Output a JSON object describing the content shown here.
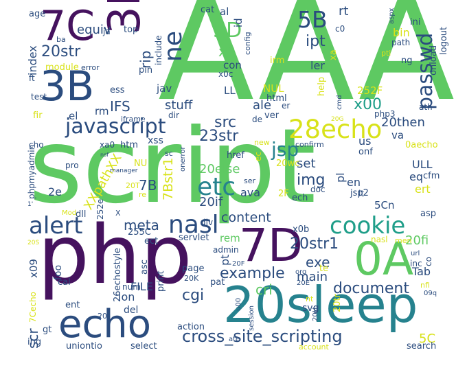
{
  "palette": {
    "dark_purple": "#45125e",
    "navy_teal": "#2b4c7e",
    "teal": "#26828e",
    "green_teal": "#1f9e89",
    "green": "#5ec962",
    "yellow": "#d8e219",
    "background": "#ffffff"
  },
  "words": [
    {
      "text": "AAA",
      "color": "#5ec962"
    },
    {
      "text": "script",
      "color": "#5ec962"
    },
    {
      "text": "php",
      "color": "#45125e"
    },
    {
      "text": "20sleep",
      "color": "#26828e"
    },
    {
      "text": "7C",
      "color": "#45125e"
    },
    {
      "text": "3B",
      "color": "#2b4c7e"
    },
    {
      "text": "3D",
      "color": "#45125e"
    },
    {
      "text": "echo",
      "color": "#2b4c7e"
    },
    {
      "text": "0A",
      "color": "#5ec962"
    },
    {
      "text": "7D",
      "color": "#45125e"
    },
    {
      "text": "javascript",
      "color": "#2b4c7e"
    },
    {
      "text": "28echo",
      "color": "#d8e219"
    },
    {
      "text": "cookie",
      "color": "#1f9e89"
    },
    {
      "text": "nasl",
      "color": "#2b4c7e"
    },
    {
      "text": "alert",
      "color": "#2b4c7e"
    },
    {
      "text": "etc",
      "color": "#26828e"
    },
    {
      "text": "passwd",
      "color": "#2b4c7e"
    },
    {
      "text": "ne",
      "color": "#2b4c7e"
    },
    {
      "text": "5B",
      "color": "#2b4c7e"
    },
    {
      "text": "5D",
      "color": "#5ec962"
    },
    {
      "text": "cross_site_scripting",
      "color": "#2b4c7e"
    },
    {
      "text": "jsp",
      "color": "#26828e"
    },
    {
      "text": "document",
      "color": "#2b4c7e"
    },
    {
      "text": "example",
      "color": "#2b4c7e"
    },
    {
      "text": "23str",
      "color": "#2b4c7e"
    },
    {
      "text": "src",
      "color": "#2b4c7e"
    },
    {
      "text": "ipt",
      "color": "#2b4c7e"
    },
    {
      "text": "x00",
      "color": "#1f9e89"
    },
    {
      "text": "20str1",
      "color": "#2b4c7e"
    },
    {
      "text": "20str",
      "color": "#2b4c7e"
    },
    {
      "text": "img",
      "color": "#2b4c7e"
    },
    {
      "text": "content",
      "color": "#2b4c7e"
    },
    {
      "text": "7Bstr1",
      "color": "#d8e219"
    },
    {
      "text": "20else",
      "color": "#5ec962"
    },
    {
      "text": "IFS",
      "color": "#2b4c7e"
    },
    {
      "text": "x0",
      "color": "#5ec962"
    },
    {
      "text": "rip",
      "color": "#2b4c7e"
    },
    {
      "text": "equiv",
      "color": "#2b4c7e"
    },
    {
      "text": "stuff",
      "color": "#2b4c7e"
    },
    {
      "text": "20then",
      "color": "#2b4c7e"
    },
    {
      "text": "cgi",
      "color": "#2b4c7e"
    },
    {
      "text": "exe",
      "color": "#2b4c7e"
    },
    {
      "text": "main",
      "color": "#2b4c7e"
    },
    {
      "text": "cri",
      "color": "#5ec962"
    },
    {
      "text": "meta",
      "color": "#2b4c7e"
    },
    {
      "text": "7B",
      "color": "#2b4c7e"
    },
    {
      "text": "20if",
      "color": "#2b4c7e"
    },
    {
      "text": "XXpathXX",
      "color": "#d8e219"
    },
    {
      "text": "set",
      "color": "#2b4c7e"
    },
    {
      "text": "scr",
      "color": "#2b4c7e"
    },
    {
      "text": "ale",
      "color": "#2b4c7e"
    },
    {
      "text": "5C",
      "color": "#d8e219"
    },
    {
      "text": "rt",
      "color": "#2b4c7e"
    },
    {
      "text": "ler",
      "color": "#2b4c7e"
    },
    {
      "text": "20fi",
      "color": "#5ec962"
    },
    {
      "text": "FILE",
      "color": "#2b4c7e"
    },
    {
      "text": "Tab",
      "color": "#2b4c7e"
    },
    {
      "text": "index",
      "color": "#2b4c7e"
    },
    {
      "text": "con",
      "color": "#2b4c7e"
    },
    {
      "text": "jav",
      "color": "#2b4c7e"
    },
    {
      "text": "ava",
      "color": "#2b4c7e"
    },
    {
      "text": "eq",
      "color": "#2b4c7e"
    },
    {
      "text": "ert",
      "color": "#d8e219"
    },
    {
      "text": "en",
      "color": "#2b4c7e"
    },
    {
      "text": "pl",
      "color": "#2b4c7e"
    },
    {
      "text": "2e",
      "color": "#2b4c7e"
    },
    {
      "text": "rem",
      "color": "#5ec962"
    },
    {
      "text": "pt",
      "color": "#2b4c7e"
    },
    {
      "text": "ion",
      "color": "#2b4c7e"
    },
    {
      "text": "del",
      "color": "#2b4c7e"
    },
    {
      "text": "x09",
      "color": "#2b4c7e"
    },
    {
      "text": "LL",
      "color": "#2b4c7e"
    },
    {
      "text": "NUL",
      "color": "#d8e219"
    },
    {
      "text": "html",
      "color": "#2b4c7e"
    },
    {
      "text": "ULL",
      "color": "#2b4c7e"
    },
    {
      "text": "bin",
      "color": "#d8e219"
    },
    {
      "text": "onload",
      "color": "#2b4c7e"
    },
    {
      "text": "logout",
      "color": "#2b4c7e"
    },
    {
      "text": "va",
      "color": "#2b4c7e"
    },
    {
      "text": "us",
      "color": "#2b4c7e"
    },
    {
      "text": "0aecho",
      "color": "#d8e219"
    },
    {
      "text": "jsp2",
      "color": "#2b4c7e"
    },
    {
      "text": "5Cn",
      "color": "#2b4c7e"
    },
    {
      "text": "svg",
      "color": "#2b4c7e"
    },
    {
      "text": "asc",
      "color": "#2b4c7e"
    },
    {
      "text": "print",
      "color": "#2b4c7e"
    },
    {
      "text": "xss",
      "color": "#2b4c7e"
    },
    {
      "text": "htm",
      "color": "#2b4c7e"
    },
    {
      "text": "xa0",
      "color": "#2b4c7e"
    },
    {
      "text": "rm",
      "color": "#2b4c7e"
    },
    {
      "text": "ess",
      "color": "#2b4c7e"
    },
    {
      "text": "pin",
      "color": "#2b4c7e"
    },
    {
      "text": "ft",
      "color": "#2b4c7e"
    },
    {
      "text": "test",
      "color": "#2b4c7e"
    },
    {
      "text": "fir",
      "color": "#d8e219"
    },
    {
      "text": "el",
      "color": "#2b4c7e"
    },
    {
      "text": "cho",
      "color": "#2b4c7e"
    },
    {
      "text": "module",
      "color": "#d8e219"
    },
    {
      "text": "error",
      "color": "#2b4c7e"
    },
    {
      "text": "age",
      "color": "#2b4c7e"
    },
    {
      "text": "ba",
      "color": "#2b4c7e"
    },
    {
      "text": "ja",
      "color": "#2b4c7e"
    },
    {
      "text": "top",
      "color": "#2b4c7e"
    },
    {
      "text": "include",
      "color": "#2b4c7e"
    },
    {
      "text": "cat",
      "color": "#2b4c7e"
    },
    {
      "text": "al",
      "color": "#2b4c7e"
    },
    {
      "text": "id",
      "color": "#2b4c7e"
    },
    {
      "text": "config",
      "color": "#2b4c7e"
    },
    {
      "text": "c0",
      "color": "#2b4c7e"
    },
    {
      "text": "xa",
      "color": "#d8e219"
    },
    {
      "text": "irm",
      "color": "#d8e219"
    },
    {
      "text": "x0c",
      "color": "#2b4c7e"
    },
    {
      "text": "help",
      "color": "#d8e219"
    },
    {
      "text": "er",
      "color": "#2b4c7e"
    },
    {
      "text": "ver",
      "color": "#2b4c7e"
    },
    {
      "text": "de",
      "color": "#2b4c7e"
    },
    {
      "text": "252F",
      "color": "#d8e219"
    },
    {
      "text": "ath",
      "color": "#2b4c7e"
    },
    {
      "text": "php3",
      "color": "#2b4c7e"
    },
    {
      "text": "cmd",
      "color": "#2b4c7e"
    },
    {
      "text": "20G",
      "color": "#d8e219"
    },
    {
      "text": "ini",
      "color": "#2b4c7e"
    },
    {
      "text": "aspx",
      "color": "#2b4c7e"
    },
    {
      "text": "path",
      "color": "#2b4c7e"
    },
    {
      "text": "ng",
      "color": "#2b4c7e"
    },
    {
      "text": "pti",
      "color": "#d8e219"
    },
    {
      "text": "iframe",
      "color": "#2b4c7e"
    },
    {
      "text": "dir",
      "color": "#2b4c7e"
    },
    {
      "text": "new",
      "color": "#d8e219"
    },
    {
      "text": "confirm",
      "color": "#2b4c7e"
    },
    {
      "text": "onf",
      "color": "#2b4c7e"
    },
    {
      "text": "cfm",
      "color": "#2b4c7e"
    },
    {
      "text": "20wc",
      "color": "#d8e219"
    },
    {
      "text": "href",
      "color": "#2b4c7e"
    },
    {
      "text": "sc",
      "color": "#2b4c7e"
    },
    {
      "text": "ec",
      "color": "#d8e219"
    },
    {
      "text": "ser",
      "color": "#2b4c7e"
    },
    {
      "text": "2F",
      "color": "#d8e219"
    },
    {
      "text": "ech",
      "color": "#2b4c7e"
    },
    {
      "text": "doc",
      "color": "#2b4c7e"
    },
    {
      "text": "lt",
      "color": "#2b4c7e"
    },
    {
      "text": "asp",
      "color": "#2b4c7e"
    },
    {
      "text": "onerror",
      "color": "#2b4c7e"
    },
    {
      "text": "re",
      "color": "#d8e219"
    },
    {
      "text": "NU",
      "color": "#d8e219"
    },
    {
      "text": "nsf",
      "color": "#2b4c7e"
    },
    {
      "text": "manager",
      "color": "#2b4c7e"
    },
    {
      "text": "20T",
      "color": "#d8e219"
    },
    {
      "text": "pro",
      "color": "#2b4c7e"
    },
    {
      "text": "phpmyadmin",
      "color": "#2b4c7e"
    },
    {
      "text": "1'",
      "color": "#2b4c7e"
    },
    {
      "text": "dll",
      "color": "#2b4c7e"
    },
    {
      "text": "Mod",
      "color": "#d8e219"
    },
    {
      "text": "252e",
      "color": "#2b4c7e"
    },
    {
      "text": "X",
      "color": "#2b4c7e"
    },
    {
      "text": "div",
      "color": "#2b4c7e"
    },
    {
      "text": "255C",
      "color": "#2b4c7e"
    },
    {
      "text": "ect",
      "color": "#2b4c7e"
    },
    {
      "text": "servlet",
      "color": "#2b4c7e"
    },
    {
      "text": "x0b",
      "color": "#2b4c7e"
    },
    {
      "text": "nasl",
      "color": "#d8e219"
    },
    {
      "text": "men",
      "color": "#d8e219"
    },
    {
      "text": "url",
      "color": "#2b4c7e"
    },
    {
      "text": "co",
      "color": "#2b4c7e"
    },
    {
      "text": "inc",
      "color": "#2b4c7e"
    },
    {
      "text": "20S",
      "color": "#d8e219"
    },
    {
      "text": "admin",
      "color": "#2b4c7e"
    },
    {
      "text": "te",
      "color": "#d8e219"
    },
    {
      "text": "26echostyle",
      "color": "#2b4c7e"
    },
    {
      "text": "page",
      "color": "#2b4c7e"
    },
    {
      "text": "20K",
      "color": "#2b4c7e"
    },
    {
      "text": "20F",
      "color": "#2b4c7e"
    },
    {
      "text": "org",
      "color": "#2b4c7e"
    },
    {
      "text": "nfi",
      "color": "#d8e219"
    },
    {
      "text": "09q",
      "color": "#2b4c7e"
    },
    {
      "text": "20E",
      "color": "#2b4c7e"
    },
    {
      "text": "foo",
      "color": "#2b4c7e"
    },
    {
      "text": "cal",
      "color": "#2b4c7e"
    },
    {
      "text": "num",
      "color": "#2b4c7e"
    },
    {
      "text": "pat",
      "color": "#2b4c7e"
    },
    {
      "text": "nt",
      "color": "#d8e219"
    },
    {
      "text": "20tr",
      "color": "#d8e219"
    },
    {
      "text": "ent",
      "color": "#2b4c7e"
    },
    {
      "text": "7Cecho",
      "color": "#d8e219"
    },
    {
      "text": "20J",
      "color": "#2b4c7e"
    },
    {
      "text": "u00",
      "color": "#2b4c7e"
    },
    {
      "text": "session",
      "color": "#2b4c7e"
    },
    {
      "text": "20H",
      "color": "#2b4c7e"
    },
    {
      "text": "action",
      "color": "#2b4c7e"
    },
    {
      "text": "gt",
      "color": "#2b4c7e"
    },
    {
      "text": "ing",
      "color": "#2b4c7e"
    },
    {
      "text": "uniontio",
      "color": "#2b4c7e"
    },
    {
      "text": "select",
      "color": "#2b4c7e"
    },
    {
      "text": "ate",
      "color": "#2b4c7e"
    },
    {
      "text": "account",
      "color": "#d8e219"
    },
    {
      "text": "search",
      "color": "#2b4c7e"
    }
  ]
}
